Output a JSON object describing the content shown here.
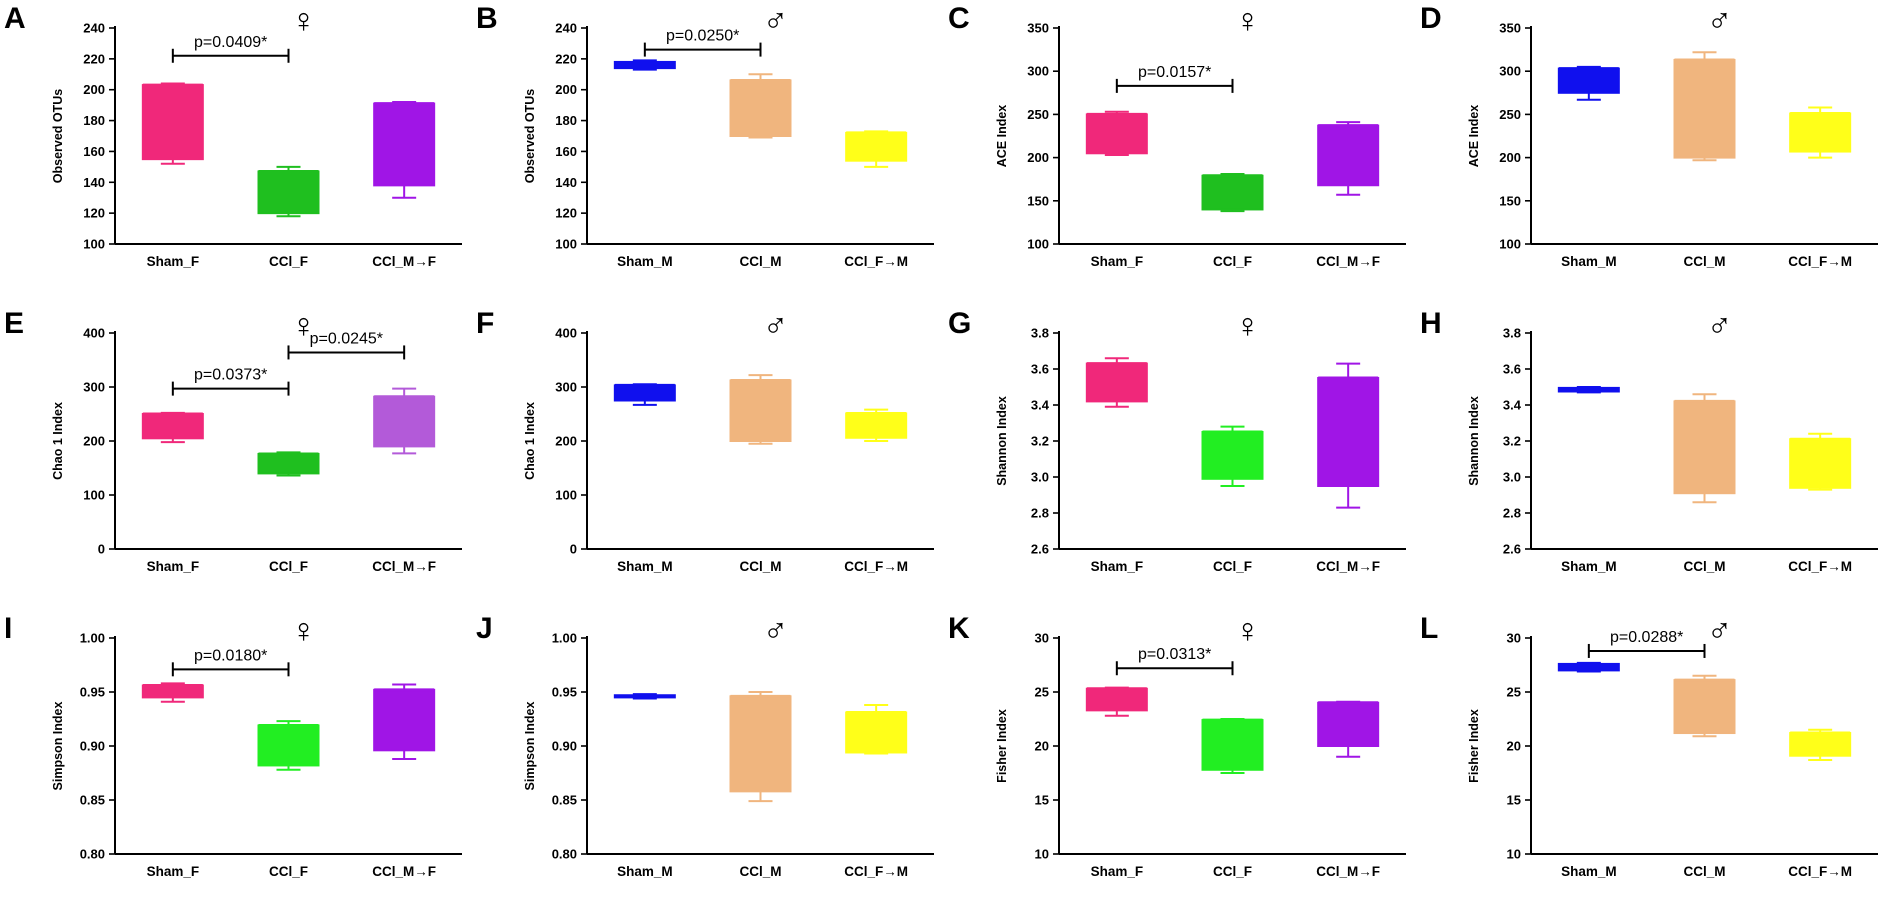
{
  "figure": {
    "panels": [
      "A",
      "B",
      "C",
      "D",
      "E",
      "F",
      "G",
      "H",
      "I",
      "J",
      "K",
      "L"
    ]
  },
  "chart_data": [
    {
      "id": "A",
      "type": "box",
      "sex_symbol": "♀",
      "ylabel": "Observed OTUs",
      "ylim": [
        100,
        240
      ],
      "yticks": [
        100,
        120,
        140,
        160,
        180,
        200,
        220,
        240
      ],
      "categories": [
        "Sham_F",
        "CCl_F",
        "CCl_M→F"
      ],
      "colors": [
        "#f0287a",
        "#1fbf1f",
        "#a015e6"
      ],
      "boxes": [
        {
          "min": 152,
          "q1": 155,
          "q3": 203,
          "max": 204,
          "median": 203
        },
        {
          "min": 118,
          "q1": 120,
          "q3": 147,
          "max": 150,
          "median": 147
        },
        {
          "min": 130,
          "q1": 138,
          "q3": 191,
          "max": 192,
          "median": 191
        }
      ],
      "annotations": [
        {
          "text": "p=0.0409*",
          "from": 0,
          "to": 1,
          "y": 222
        }
      ]
    },
    {
      "id": "B",
      "type": "box",
      "sex_symbol": "♂",
      "ylabel": "Observed OTUs",
      "ylim": [
        100,
        240
      ],
      "yticks": [
        100,
        120,
        140,
        160,
        180,
        200,
        220,
        240
      ],
      "categories": [
        "Sham_M",
        "CCl_M",
        "CCl_F→M"
      ],
      "colors": [
        "#1010ee",
        "#f0b57e",
        "#ffff19"
      ],
      "boxes": [
        {
          "min": 213,
          "q1": 214,
          "q3": 218,
          "max": 219,
          "median": 216
        },
        {
          "min": 169,
          "q1": 170,
          "q3": 206,
          "max": 210,
          "median": 206
        },
        {
          "min": 150,
          "q1": 154,
          "q3": 172,
          "max": 173,
          "median": 172
        }
      ],
      "annotations": [
        {
          "text": "p=0.0250*",
          "from": 0,
          "to": 1,
          "y": 226
        }
      ]
    },
    {
      "id": "C",
      "type": "box",
      "sex_symbol": "♀",
      "ylabel": "ACE Index",
      "ylim": [
        100,
        350
      ],
      "yticks": [
        100,
        150,
        200,
        250,
        300,
        350
      ],
      "categories": [
        "Sham_F",
        "CCl_F",
        "CCl_M→F"
      ],
      "colors": [
        "#f0287a",
        "#1fbf1f",
        "#a015e6"
      ],
      "boxes": [
        {
          "min": 203,
          "q1": 205,
          "q3": 250,
          "max": 253,
          "median": 250
        },
        {
          "min": 138,
          "q1": 140,
          "q3": 179,
          "max": 181,
          "median": 179
        },
        {
          "min": 157,
          "q1": 168,
          "q3": 237,
          "max": 241,
          "median": 237
        }
      ],
      "annotations": [
        {
          "text": "p=0.0157*",
          "from": 0,
          "to": 1,
          "y": 283
        }
      ]
    },
    {
      "id": "D",
      "type": "box",
      "sex_symbol": "♂",
      "ylabel": "ACE Index",
      "ylim": [
        100,
        350
      ],
      "yticks": [
        100,
        150,
        200,
        250,
        300,
        350
      ],
      "categories": [
        "Sham_M",
        "CCl_M",
        "CCl_F→M"
      ],
      "colors": [
        "#1010ee",
        "#f0b57e",
        "#ffff19"
      ],
      "boxes": [
        {
          "min": 267,
          "q1": 275,
          "q3": 303,
          "max": 305,
          "median": 303
        },
        {
          "min": 197,
          "q1": 200,
          "q3": 313,
          "max": 322,
          "median": 313
        },
        {
          "min": 200,
          "q1": 207,
          "q3": 251,
          "max": 258,
          "median": 251
        }
      ],
      "annotations": []
    },
    {
      "id": "E",
      "type": "box",
      "sex_symbol": "♀",
      "ylabel": "Chao 1 Index",
      "ylim": [
        0,
        400
      ],
      "yticks": [
        0,
        100,
        200,
        300,
        400
      ],
      "categories": [
        "Sham_F",
        "CCl_F",
        "CCl_M→F"
      ],
      "colors": [
        "#f0287a",
        "#1fbf1f",
        "#b35ad9"
      ],
      "boxes": [
        {
          "min": 198,
          "q1": 205,
          "q3": 250,
          "max": 252,
          "median": 250
        },
        {
          "min": 136,
          "q1": 140,
          "q3": 176,
          "max": 179,
          "median": 176
        },
        {
          "min": 177,
          "q1": 190,
          "q3": 282,
          "max": 297,
          "median": 282
        }
      ],
      "annotations": [
        {
          "text": "p=0.0373*",
          "from": 0,
          "to": 1,
          "y": 297
        },
        {
          "text": "p=0.0245*",
          "from": 1,
          "to": 2,
          "y": 364
        }
      ]
    },
    {
      "id": "F",
      "type": "box",
      "sex_symbol": "♂",
      "ylabel": "Chao 1 Index",
      "ylim": [
        0,
        400
      ],
      "yticks": [
        0,
        100,
        200,
        300,
        400
      ],
      "categories": [
        "Sham_M",
        "CCl_M",
        "CCl_F→M"
      ],
      "colors": [
        "#1010ee",
        "#f0b57e",
        "#ffff19"
      ],
      "boxes": [
        {
          "min": 267,
          "q1": 275,
          "q3": 303,
          "max": 305,
          "median": 303
        },
        {
          "min": 195,
          "q1": 200,
          "q3": 312,
          "max": 322,
          "median": 312
        },
        {
          "min": 200,
          "q1": 206,
          "q3": 251,
          "max": 258,
          "median": 251
        }
      ],
      "annotations": []
    },
    {
      "id": "G",
      "type": "box",
      "sex_symbol": "♀",
      "ylabel": "Shannon Index",
      "ylim": [
        2.6,
        3.8
      ],
      "yticks": [
        2.6,
        2.8,
        3.0,
        3.2,
        3.4,
        3.6,
        3.8
      ],
      "categories": [
        "Sham_F",
        "CCl_F",
        "CCl_M→F"
      ],
      "colors": [
        "#f0287a",
        "#22ee22",
        "#a015e6"
      ],
      "boxes": [
        {
          "min": 3.39,
          "q1": 3.42,
          "q3": 3.63,
          "max": 3.66,
          "median": 3.63
        },
        {
          "min": 2.95,
          "q1": 2.99,
          "q3": 3.25,
          "max": 3.28,
          "median": 3.25
        },
        {
          "min": 2.83,
          "q1": 2.95,
          "q3": 3.55,
          "max": 3.63,
          "median": 3.55
        }
      ],
      "annotations": []
    },
    {
      "id": "H",
      "type": "box",
      "sex_symbol": "♂",
      "ylabel": "Shannon Index",
      "ylim": [
        2.6,
        3.8
      ],
      "yticks": [
        2.6,
        2.8,
        3.0,
        3.2,
        3.4,
        3.6,
        3.8
      ],
      "categories": [
        "Sham_M",
        "CCl_M",
        "CCl_F→M"
      ],
      "colors": [
        "#1010ee",
        "#f0b57e",
        "#ffff19"
      ],
      "boxes": [
        {
          "min": 3.47,
          "q1": 3.475,
          "q3": 3.495,
          "max": 3.5,
          "median": 3.485
        },
        {
          "min": 2.86,
          "q1": 2.91,
          "q3": 3.42,
          "max": 3.46,
          "median": 3.42
        },
        {
          "min": 2.93,
          "q1": 2.94,
          "q3": 3.21,
          "max": 3.24,
          "median": 3.21
        }
      ],
      "annotations": []
    },
    {
      "id": "I",
      "type": "box",
      "sex_symbol": "♀",
      "ylabel": "Simpson Index",
      "ylim": [
        0.8,
        1.0
      ],
      "yticks": [
        0.8,
        0.85,
        0.9,
        0.95,
        1.0
      ],
      "categories": [
        "Sham_F",
        "CCl_F",
        "CCl_M→F"
      ],
      "colors": [
        "#f0287a",
        "#22ee22",
        "#a015e6"
      ],
      "boxes": [
        {
          "min": 0.941,
          "q1": 0.945,
          "q3": 0.956,
          "max": 0.958,
          "median": 0.956
        },
        {
          "min": 0.878,
          "q1": 0.882,
          "q3": 0.919,
          "max": 0.923,
          "median": 0.919
        },
        {
          "min": 0.888,
          "q1": 0.896,
          "q3": 0.952,
          "max": 0.957,
          "median": 0.952
        }
      ],
      "annotations": [
        {
          "text": "p=0.0180*",
          "from": 0,
          "to": 1,
          "y": 0.971
        }
      ]
    },
    {
      "id": "J",
      "type": "box",
      "sex_symbol": "♂",
      "ylabel": "Simpson Index",
      "ylim": [
        0.8,
        1.0
      ],
      "yticks": [
        0.8,
        0.85,
        0.9,
        0.95,
        1.0
      ],
      "categories": [
        "Sham_M",
        "CCl_M",
        "CCl_F→M"
      ],
      "colors": [
        "#1010ee",
        "#f0b57e",
        "#ffff19"
      ],
      "boxes": [
        {
          "min": 0.944,
          "q1": 0.945,
          "q3": 0.947,
          "max": 0.948,
          "median": 0.946
        },
        {
          "min": 0.849,
          "q1": 0.858,
          "q3": 0.946,
          "max": 0.95,
          "median": 0.946
        },
        {
          "min": 0.893,
          "q1": 0.894,
          "q3": 0.931,
          "max": 0.938,
          "median": 0.931
        }
      ],
      "annotations": []
    },
    {
      "id": "K",
      "type": "box",
      "sex_symbol": "♀",
      "ylabel": "Fisher Index",
      "ylim": [
        10,
        30
      ],
      "yticks": [
        10,
        15,
        20,
        25,
        30
      ],
      "categories": [
        "Sham_F",
        "CCl_F",
        "CCl_M→F"
      ],
      "colors": [
        "#f0287a",
        "#22ee22",
        "#a015e6"
      ],
      "boxes": [
        {
          "min": 22.8,
          "q1": 23.3,
          "q3": 25.3,
          "max": 25.4,
          "median": 25.3
        },
        {
          "min": 17.5,
          "q1": 17.8,
          "q3": 22.4,
          "max": 22.5,
          "median": 22.4
        },
        {
          "min": 19.0,
          "q1": 20.0,
          "q3": 24.0,
          "max": 24.1,
          "median": 24.0
        }
      ],
      "annotations": [
        {
          "text": "p=0.0313*",
          "from": 0,
          "to": 1,
          "y": 27.2
        }
      ]
    },
    {
      "id": "L",
      "type": "box",
      "sex_symbol": "♂",
      "ylabel": "Fisher Index",
      "ylim": [
        10,
        30
      ],
      "yticks": [
        10,
        15,
        20,
        25,
        30
      ],
      "categories": [
        "Sham_M",
        "CCl_M",
        "CCl_F→M"
      ],
      "colors": [
        "#1010ee",
        "#f0b57e",
        "#ffff19"
      ],
      "boxes": [
        {
          "min": 26.9,
          "q1": 27.0,
          "q3": 27.6,
          "max": 27.7,
          "median": 27.4
        },
        {
          "min": 20.9,
          "q1": 21.2,
          "q3": 26.1,
          "max": 26.5,
          "median": 26.1
        },
        {
          "min": 18.7,
          "q1": 19.1,
          "q3": 21.2,
          "max": 21.5,
          "median": 21.2
        }
      ],
      "annotations": [
        {
          "text": "p=0.0288*",
          "from": 0,
          "to": 1,
          "y": 28.8
        }
      ]
    }
  ]
}
